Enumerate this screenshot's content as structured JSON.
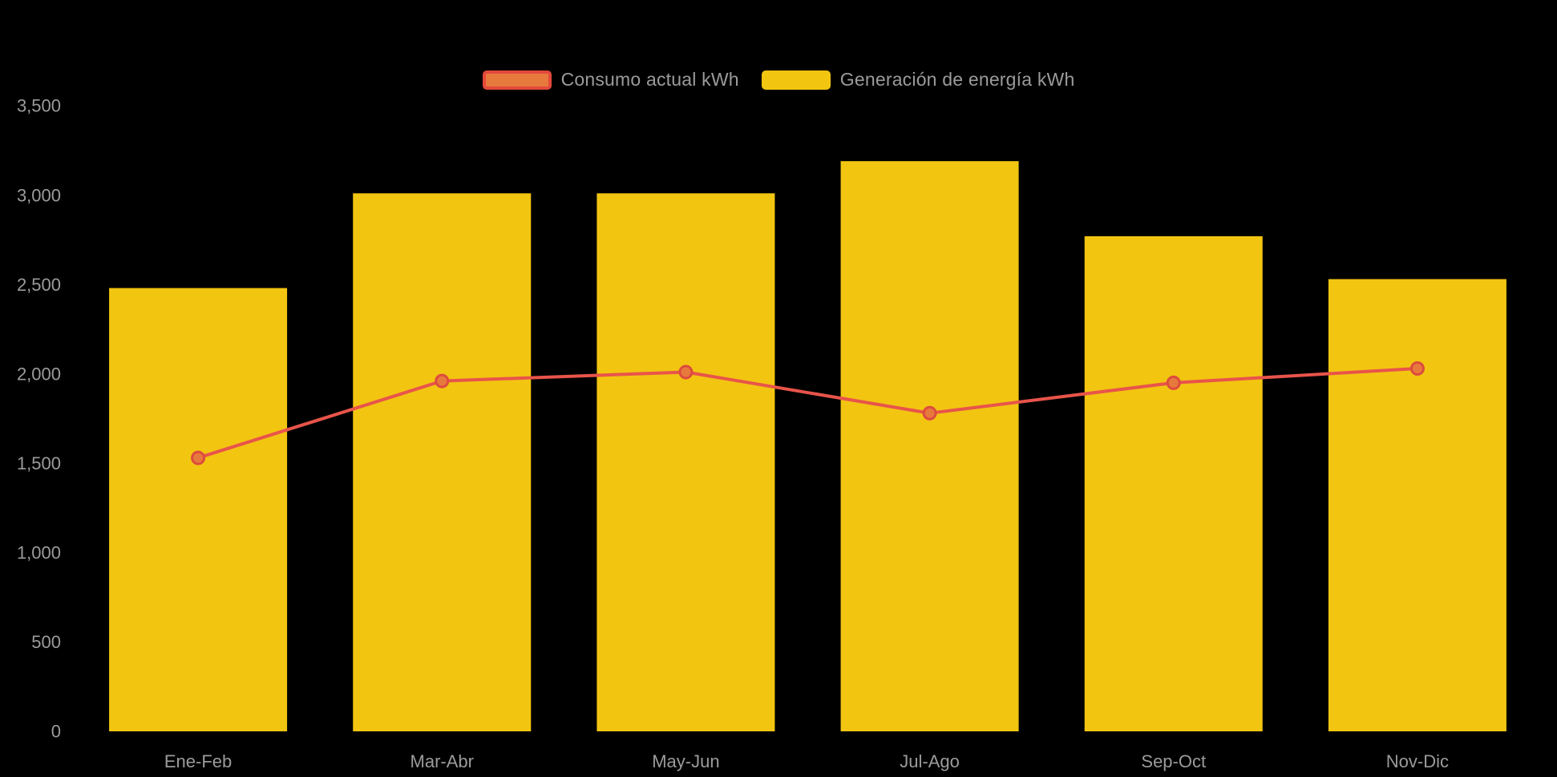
{
  "legend": {
    "items": [
      {
        "label": "Consumo actual kWh",
        "series": "line",
        "swatch_fill": "#E8793D",
        "swatch_border": "#E3493B"
      },
      {
        "label": "Generación de energía kWh",
        "series": "bar",
        "swatch_fill": "#F2C511",
        "swatch_border": "#F2C511"
      }
    ]
  },
  "chart_data": {
    "type": "bar+line",
    "title": "",
    "xlabel": "",
    "ylabel": "",
    "categories": [
      "Ene-Feb",
      "Mar-Abr",
      "May-Jun",
      "Jul-Ago",
      "Sep-Oct",
      "Nov-Dic"
    ],
    "series": [
      {
        "name": "Generación de energía kWh",
        "type": "bar",
        "color": "#F2C511",
        "values": [
          2480,
          3010,
          3010,
          3190,
          2770,
          2530
        ]
      },
      {
        "name": "Consumo actual kWh",
        "type": "line",
        "color": "#E8544A",
        "marker_fill": "#E8793D",
        "marker_stroke": "#DD4B3E",
        "values": [
          1530,
          1960,
          2010,
          1780,
          1950,
          2030
        ]
      }
    ],
    "ylim": [
      0,
      3500
    ],
    "yticks": [
      0,
      500,
      1000,
      1500,
      2000,
      2500,
      3000,
      3500
    ],
    "ytick_labels": [
      "0",
      "500",
      "1,000",
      "1,500",
      "2,000",
      "2,500",
      "3,000",
      "3,500"
    ],
    "grid": false,
    "legend_position": "top-center",
    "background_color": "#000000",
    "axis_label_color": "#9b9b9b",
    "axis_font_size_px": 22
  }
}
